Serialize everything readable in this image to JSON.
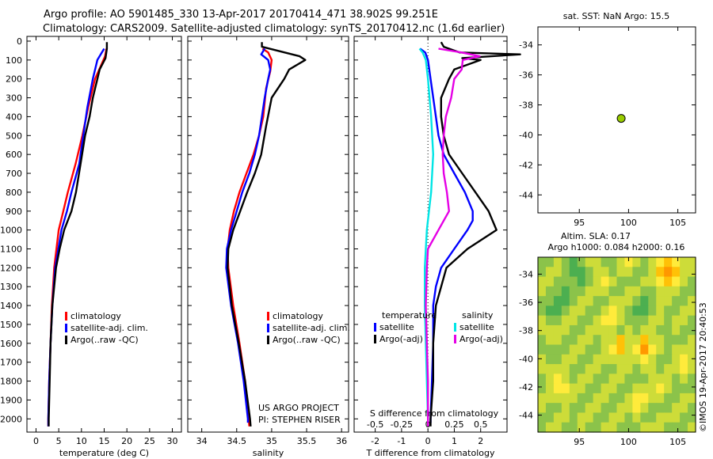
{
  "header": {
    "line1": "Argo profile: AO 5901485_330 13-Apr-2017 20170414_471 38.902S 99.251E",
    "line2": "Climatology: CARS2009. Satellite-adjusted climatology: synTS_20170412.nc (1.6d earlier)"
  },
  "colors": {
    "climatology": "#ff0000",
    "satellite": "#0000ff",
    "argo": "#000000",
    "salinity_satellite": "#00e5e5",
    "salinity_argo": "#e500e5",
    "station_marker": "#99cc00"
  },
  "credits": {
    "project": "US ARGO PROJECT",
    "pi": "PI: STEPHEN RISER",
    "imos": "©IMOS 19-Apr-2017 20:40:53"
  },
  "depth_ticks": [
    "0",
    "100",
    "200",
    "300",
    "400",
    "500",
    "600",
    "700",
    "800",
    "900",
    "1000",
    "1100",
    "1200",
    "1300",
    "1400",
    "1500",
    "1600",
    "1700",
    "1800",
    "1900",
    "2000"
  ],
  "chart_data": [
    {
      "id": "temperature",
      "type": "line",
      "xlabel": "temperature (deg C)",
      "ylabel": "",
      "xlim": [
        -2,
        32
      ],
      "ylim": [
        2070,
        0
      ],
      "xticks": [
        "0",
        "5",
        "10",
        "15",
        "20",
        "25",
        "30"
      ],
      "legend": [
        "climatology",
        "satellite-adj. clim.",
        "Argo(..raw -QC)"
      ],
      "legend_position": "lower-right",
      "series": [
        {
          "name": "climatology",
          "color": "#ff0000",
          "depth": [
            40,
            80,
            200,
            350,
            500,
            650,
            800,
            900,
            1000,
            1200,
            1400,
            1600,
            1800,
            2000,
            2040
          ],
          "values": [
            15.5,
            15.2,
            13.0,
            11.5,
            10.2,
            8.7,
            7.0,
            6.0,
            5.0,
            4.0,
            3.5,
            3.2,
            2.9,
            2.7,
            2.7
          ]
        },
        {
          "name": "satellite-adj. clim.",
          "color": "#0000ff",
          "depth": [
            40,
            60,
            100,
            200,
            350,
            500,
            650,
            800,
            900,
            1000,
            1200,
            1400,
            1600,
            1800,
            2000,
            2040
          ],
          "values": [
            15.0,
            14.5,
            13.5,
            12.5,
            11.3,
            10.4,
            9.5,
            7.8,
            6.8,
            5.6,
            4.2,
            3.6,
            3.2,
            2.9,
            2.7,
            2.7
          ]
        },
        {
          "name": "Argo(..raw -QC)",
          "color": "#000000",
          "depth": [
            5,
            40,
            90,
            150,
            300,
            400,
            500,
            650,
            800,
            900,
            1000,
            1100,
            1200,
            1400,
            1600,
            1800,
            2000,
            2040
          ],
          "values": [
            15.6,
            15.6,
            15.3,
            14.0,
            12.5,
            11.8,
            10.8,
            9.8,
            8.8,
            7.8,
            6.2,
            5.2,
            4.4,
            3.6,
            3.2,
            3.0,
            2.8,
            2.8
          ]
        }
      ]
    },
    {
      "id": "salinity",
      "type": "line",
      "xlabel": "salinity",
      "ylabel": "",
      "xlim": [
        33.8,
        36.1
      ],
      "ylim": [
        2070,
        0
      ],
      "xticks": [
        "34",
        "34.5",
        "35",
        "35.5",
        "36"
      ],
      "legend": [
        "climatology",
        "satellite-adj. clim.",
        "Argo(..raw -QC)"
      ],
      "legend_position": "lower-right",
      "series": [
        {
          "name": "climatology",
          "color": "#ff0000",
          "depth": [
            40,
            60,
            100,
            160,
            250,
            400,
            500,
            600,
            700,
            800,
            900,
            1000,
            1100,
            1200,
            1400,
            1600,
            1800,
            2000,
            2040
          ],
          "values": [
            34.87,
            34.95,
            35.0,
            34.98,
            34.92,
            34.88,
            34.82,
            34.74,
            34.64,
            34.54,
            34.46,
            34.4,
            34.37,
            34.38,
            34.45,
            34.54,
            34.62,
            34.67,
            34.68
          ]
        },
        {
          "name": "satellite-adj. clim.",
          "color": "#0000ff",
          "depth": [
            40,
            70,
            100,
            150,
            200,
            300,
            400,
            500,
            600,
            700,
            800,
            900,
            1000,
            1100,
            1200,
            1400,
            1600,
            1800,
            2000,
            2020
          ],
          "values": [
            34.9,
            34.85,
            34.95,
            34.98,
            34.95,
            34.9,
            34.86,
            34.82,
            34.76,
            34.68,
            34.58,
            34.5,
            34.42,
            34.36,
            34.35,
            34.42,
            34.52,
            34.6,
            34.66,
            34.66
          ]
        },
        {
          "name": "Argo(..raw -QC)",
          "color": "#000000",
          "depth": [
            5,
            30,
            80,
            100,
            150,
            200,
            300,
            450,
            600,
            700,
            800,
            900,
            1000,
            1100,
            1200,
            1400,
            1600,
            1800,
            2000,
            2040
          ],
          "values": [
            34.86,
            34.86,
            35.4,
            35.48,
            35.25,
            35.18,
            35.0,
            34.92,
            34.85,
            34.76,
            34.65,
            34.55,
            34.45,
            34.38,
            34.37,
            34.43,
            34.53,
            34.62,
            34.69,
            34.7
          ]
        }
      ]
    },
    {
      "id": "difference",
      "type": "line",
      "xlabel": "T difference from climatology",
      "xlabel_top": "S difference from climatology",
      "xlim": [
        -2.8,
        3.0
      ],
      "xlim_salinity": [
        -0.7,
        0.75
      ],
      "ylim": [
        2070,
        0
      ],
      "xticks": [
        "-2",
        "-1",
        "0",
        "1",
        "2"
      ],
      "xticks_salinity": [
        "-0.5",
        "-0.25",
        "0",
        "0.25",
        "0.5"
      ],
      "legend": [
        "temperature",
        "satellite",
        "Argo(-adj)",
        "salinity",
        "satellite",
        "Argo(-adj)"
      ],
      "legend_position": "lower-center",
      "series": [
        {
          "name": "satellite",
          "group": "temperature",
          "color": "#0000ff",
          "depth": [
            40,
            60,
            100,
            200,
            400,
            500,
            600,
            700,
            800,
            900,
            950,
            1000,
            1100,
            1200,
            1300,
            1400,
            1600,
            1800,
            2000,
            2020
          ],
          "values": [
            -0.3,
            -0.1,
            0.0,
            0.1,
            0.3,
            0.4,
            0.6,
            1.0,
            1.4,
            1.7,
            1.7,
            1.5,
            1.0,
            0.5,
            0.3,
            0.2,
            0.2,
            0.15,
            0.1,
            0.1
          ]
        },
        {
          "name": "Argo(-adj)",
          "group": "temperature",
          "color": "#000000",
          "depth": [
            5,
            30,
            60,
            70,
            90,
            100,
            150,
            200,
            300,
            400,
            500,
            600,
            700,
            800,
            900,
            1000,
            1100,
            1200,
            1400,
            1600,
            1800,
            2000,
            2040
          ],
          "values": [
            0.5,
            0.6,
            1.2,
            3.5,
            1.3,
            2.0,
            1.0,
            0.8,
            0.5,
            0.5,
            0.6,
            0.8,
            1.3,
            1.8,
            2.3,
            2.6,
            1.5,
            0.7,
            0.3,
            0.2,
            0.2,
            0.1,
            0.1
          ]
        },
        {
          "name": "satellite",
          "group": "salinity",
          "color": "#00e5e5",
          "depth": [
            40,
            60,
            100,
            200,
            400,
            600,
            800,
            1000,
            1200,
            1400,
            1600,
            1800,
            2000,
            2020
          ],
          "values": [
            -0.08,
            -0.05,
            -0.02,
            0.0,
            0.03,
            0.05,
            0.03,
            -0.01,
            -0.03,
            -0.03,
            -0.02,
            -0.01,
            0.0,
            0.0
          ]
        },
        {
          "name": "Argo(-adj)",
          "group": "salinity",
          "color": "#e500e5",
          "depth": [
            40,
            60,
            80,
            100,
            150,
            200,
            300,
            400,
            500,
            600,
            700,
            800,
            900,
            1000,
            1100,
            1200,
            1400,
            1600,
            1800,
            2000,
            2040
          ],
          "values": [
            0.1,
            0.32,
            0.49,
            0.33,
            0.32,
            0.25,
            0.22,
            0.17,
            0.15,
            0.14,
            0.15,
            0.18,
            0.2,
            0.1,
            0.0,
            -0.01,
            -0.02,
            -0.01,
            0.0,
            0.0,
            0.0
          ]
        }
      ]
    },
    {
      "id": "location",
      "type": "scatter",
      "title": "sat. SST: NaN Argo: 15.5",
      "xlim": [
        90.8,
        106.8
      ],
      "ylim": [
        -45.2,
        -32.8
      ],
      "xticks": [
        "95",
        "100",
        "105"
      ],
      "yticks": [
        "-34",
        "-36",
        "-38",
        "-40",
        "-42",
        "-44"
      ],
      "points": [
        {
          "x": 99.25,
          "y": -38.9,
          "color": "#99cc00"
        }
      ]
    },
    {
      "id": "altimetry",
      "type": "heatmap",
      "title": "Altim. SLA: 0.17",
      "subtitle": "Argo h1000: 0.084 h2000: 0.16",
      "xlim": [
        90.8,
        106.8
      ],
      "ylim": [
        -45.2,
        -32.8
      ],
      "xticks": [
        "95",
        "100",
        "105"
      ],
      "yticks": [
        "-34",
        "-36",
        "-38",
        "-40",
        "-42",
        "-44"
      ],
      "palette": [
        "#2e8b57",
        "#4caf50",
        "#8bc34a",
        "#cddc39",
        "#ffeb3b",
        "#ffc107",
        "#ff9800"
      ],
      "field": [
        [
          2,
          2,
          3,
          2,
          1,
          2,
          3,
          3,
          2,
          2,
          3,
          4,
          3,
          2,
          3,
          4,
          5,
          4,
          3,
          3
        ],
        [
          2,
          3,
          3,
          2,
          1,
          1,
          2,
          3,
          3,
          2,
          3,
          3,
          2,
          2,
          3,
          5,
          6,
          5,
          3,
          3
        ],
        [
          3,
          3,
          2,
          2,
          2,
          1,
          2,
          3,
          4,
          3,
          2,
          2,
          2,
          3,
          3,
          4,
          5,
          4,
          3,
          2
        ],
        [
          3,
          2,
          2,
          1,
          2,
          2,
          3,
          3,
          3,
          2,
          2,
          3,
          3,
          2,
          2,
          3,
          3,
          3,
          2,
          2
        ],
        [
          2,
          2,
          1,
          1,
          2,
          3,
          3,
          2,
          2,
          3,
          3,
          3,
          2,
          1,
          2,
          3,
          3,
          2,
          2,
          3
        ],
        [
          2,
          1,
          1,
          2,
          3,
          3,
          2,
          2,
          3,
          4,
          3,
          2,
          1,
          1,
          2,
          3,
          2,
          2,
          3,
          3
        ],
        [
          3,
          2,
          2,
          3,
          3,
          2,
          2,
          3,
          4,
          4,
          3,
          2,
          2,
          2,
          3,
          3,
          2,
          3,
          3,
          2
        ],
        [
          3,
          3,
          3,
          3,
          2,
          2,
          3,
          3,
          3,
          3,
          2,
          3,
          2,
          3,
          3,
          2,
          2,
          3,
          2,
          2
        ],
        [
          2,
          3,
          3,
          2,
          2,
          3,
          3,
          2,
          3,
          3,
          5,
          3,
          3,
          5,
          3,
          3,
          2,
          2,
          2,
          3
        ],
        [
          2,
          2,
          2,
          2,
          3,
          3,
          2,
          2,
          3,
          4,
          5,
          3,
          4,
          6,
          4,
          3,
          2,
          3,
          3,
          3
        ],
        [
          3,
          2,
          2,
          3,
          3,
          2,
          2,
          3,
          3,
          3,
          3,
          3,
          3,
          4,
          3,
          2,
          2,
          3,
          4,
          3
        ],
        [
          3,
          3,
          3,
          3,
          2,
          2,
          3,
          3,
          2,
          2,
          3,
          3,
          2,
          3,
          3,
          2,
          3,
          3,
          4,
          3
        ],
        [
          2,
          3,
          4,
          3,
          2,
          3,
          3,
          2,
          2,
          3,
          3,
          2,
          2,
          2,
          3,
          3,
          3,
          2,
          3,
          2
        ],
        [
          2,
          3,
          4,
          4,
          3,
          3,
          2,
          2,
          3,
          3,
          2,
          2,
          3,
          3,
          3,
          4,
          3,
          2,
          2,
          2
        ],
        [
          3,
          3,
          3,
          3,
          3,
          2,
          2,
          3,
          3,
          2,
          2,
          3,
          4,
          4,
          3,
          3,
          2,
          2,
          3,
          3
        ],
        [
          3,
          2,
          2,
          3,
          2,
          2,
          3,
          3,
          2,
          2,
          3,
          3,
          4,
          3,
          2,
          2,
          2,
          3,
          3,
          2
        ],
        [
          2,
          2,
          3,
          3,
          2,
          3,
          3,
          2,
          2,
          3,
          3,
          2,
          3,
          2,
          2,
          3,
          3,
          3,
          2,
          2
        ],
        [
          2,
          3,
          3,
          2,
          2,
          3,
          2,
          2,
          3,
          3,
          2,
          2,
          2,
          3,
          3,
          3,
          2,
          2,
          2,
          3
        ]
      ]
    }
  ]
}
